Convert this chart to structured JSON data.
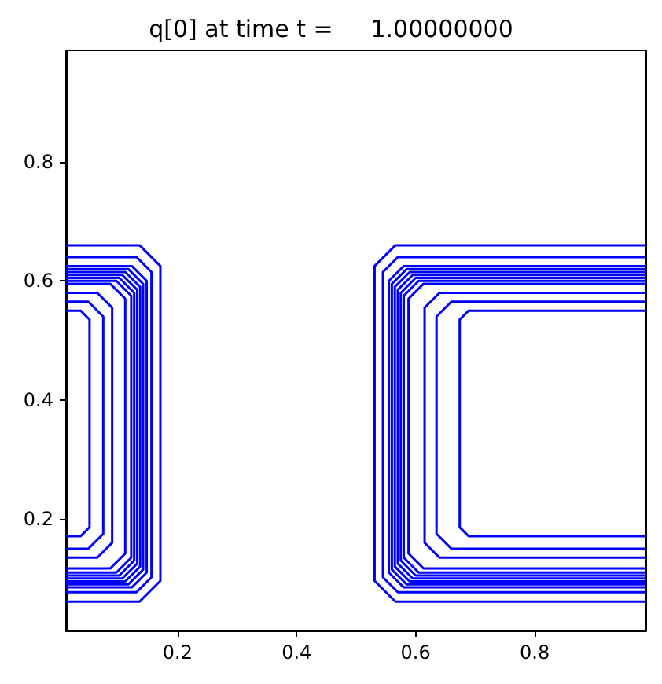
{
  "chart_data": {
    "type": "line",
    "title": "q[0] at time t =     1.00000000",
    "xlim": [
      0.0125,
      0.9875
    ],
    "ylim": [
      0.0125,
      0.9875
    ],
    "xticks": [
      0.2,
      0.4,
      0.6,
      0.8
    ],
    "yticks": [
      0.2,
      0.4,
      0.6,
      0.8
    ],
    "grid": false,
    "series": [
      {
        "color": "#0000ff",
        "x": [
          0.9875,
          0.566,
          0.531,
          0.531,
          0.566,
          0.9875
        ],
        "values": [
          0.66,
          0.66,
          0.625,
          0.096,
          0.061,
          0.061
        ]
      },
      {
        "color": "#0000ff",
        "x": [
          0.0125,
          0.136,
          0.171,
          0.171,
          0.136,
          0.0125
        ],
        "values": [
          0.66,
          0.66,
          0.625,
          0.096,
          0.061,
          0.061
        ]
      },
      {
        "color": "#0000ff",
        "x": [
          0.9875,
          0.57,
          0.545,
          0.545,
          0.57,
          0.9875
        ],
        "values": [
          0.64,
          0.64,
          0.615,
          0.102,
          0.077,
          0.077
        ]
      },
      {
        "color": "#0000ff",
        "x": [
          0.0125,
          0.131,
          0.156,
          0.156,
          0.131,
          0.0125
        ],
        "values": [
          0.64,
          0.64,
          0.615,
          0.102,
          0.077,
          0.077
        ]
      },
      {
        "color": "#0000ff",
        "x": [
          0.9875,
          0.58,
          0.555,
          0.555,
          0.58,
          0.9875
        ],
        "values": [
          0.625,
          0.625,
          0.6,
          0.11,
          0.085,
          0.085
        ]
      },
      {
        "color": "#0000ff",
        "x": [
          0.0125,
          0.123,
          0.148,
          0.148,
          0.123,
          0.0125
        ],
        "values": [
          0.625,
          0.625,
          0.6,
          0.11,
          0.085,
          0.085
        ]
      },
      {
        "color": "#0000ff",
        "x": [
          0.9875,
          0.585,
          0.56,
          0.56,
          0.585,
          0.9875
        ],
        "values": [
          0.62,
          0.62,
          0.595,
          0.115,
          0.09,
          0.09
        ]
      },
      {
        "color": "#0000ff",
        "x": [
          0.0125,
          0.117,
          0.142,
          0.142,
          0.117,
          0.0125
        ],
        "values": [
          0.62,
          0.62,
          0.595,
          0.115,
          0.09,
          0.09
        ]
      },
      {
        "color": "#0000ff",
        "x": [
          0.9875,
          0.59,
          0.565,
          0.565,
          0.59,
          0.9875
        ],
        "values": [
          0.615,
          0.615,
          0.59,
          0.12,
          0.095,
          0.095
        ]
      },
      {
        "color": "#0000ff",
        "x": [
          0.0125,
          0.112,
          0.137,
          0.137,
          0.112,
          0.0125
        ],
        "values": [
          0.615,
          0.615,
          0.59,
          0.12,
          0.095,
          0.095
        ]
      },
      {
        "color": "#0000ff",
        "x": [
          0.9875,
          0.595,
          0.57,
          0.57,
          0.595,
          0.9875
        ],
        "values": [
          0.61,
          0.61,
          0.585,
          0.125,
          0.1,
          0.1
        ]
      },
      {
        "color": "#0000ff",
        "x": [
          0.0125,
          0.107,
          0.132,
          0.132,
          0.107,
          0.0125
        ],
        "values": [
          0.61,
          0.61,
          0.585,
          0.125,
          0.1,
          0.1
        ]
      },
      {
        "color": "#0000ff",
        "x": [
          0.9875,
          0.6,
          0.575,
          0.575,
          0.6,
          0.9875
        ],
        "values": [
          0.605,
          0.605,
          0.58,
          0.13,
          0.105,
          0.105
        ]
      },
      {
        "color": "#0000ff",
        "x": [
          0.0125,
          0.102,
          0.127,
          0.127,
          0.102,
          0.0125
        ],
        "values": [
          0.605,
          0.605,
          0.58,
          0.13,
          0.105,
          0.105
        ]
      },
      {
        "color": "#0000ff",
        "x": [
          0.9875,
          0.605,
          0.58,
          0.58,
          0.605,
          0.9875
        ],
        "values": [
          0.6,
          0.6,
          0.575,
          0.135,
          0.11,
          0.11
        ]
      },
      {
        "color": "#0000ff",
        "x": [
          0.0125,
          0.097,
          0.122,
          0.122,
          0.097,
          0.0125
        ],
        "values": [
          0.6,
          0.6,
          0.575,
          0.135,
          0.11,
          0.11
        ]
      },
      {
        "color": "#0000ff",
        "x": [
          0.9875,
          0.613,
          0.588,
          0.588,
          0.613,
          0.9875
        ],
        "values": [
          0.595,
          0.595,
          0.57,
          0.142,
          0.117,
          0.117
        ]
      },
      {
        "color": "#0000ff",
        "x": [
          0.0125,
          0.087,
          0.112,
          0.112,
          0.087,
          0.0125
        ],
        "values": [
          0.595,
          0.595,
          0.57,
          0.142,
          0.117,
          0.117
        ]
      },
      {
        "color": "#0000ff",
        "x": [
          0.9875,
          0.64,
          0.615,
          0.615,
          0.64,
          0.9875
        ],
        "values": [
          0.58,
          0.58,
          0.555,
          0.16,
          0.135,
          0.135
        ]
      },
      {
        "color": "#0000ff",
        "x": [
          0.0125,
          0.065,
          0.09,
          0.09,
          0.065,
          0.0125
        ],
        "values": [
          0.58,
          0.58,
          0.555,
          0.16,
          0.135,
          0.135
        ]
      },
      {
        "color": "#0000ff",
        "x": [
          0.9875,
          0.66,
          0.635,
          0.635,
          0.66,
          0.9875
        ],
        "values": [
          0.565,
          0.565,
          0.54,
          0.175,
          0.15,
          0.15
        ]
      },
      {
        "color": "#0000ff",
        "x": [
          0.0125,
          0.05,
          0.075,
          0.075,
          0.05,
          0.0125
        ],
        "values": [
          0.565,
          0.565,
          0.54,
          0.175,
          0.15,
          0.15
        ]
      },
      {
        "color": "#0000ff",
        "x": [
          0.9875,
          0.689,
          0.674,
          0.674,
          0.689,
          0.9875
        ],
        "values": [
          0.55,
          0.55,
          0.535,
          0.186,
          0.171,
          0.171
        ]
      },
      {
        "color": "#0000ff",
        "x": [
          0.0125,
          0.037,
          0.052,
          0.052,
          0.037,
          0.0125
        ],
        "values": [
          0.55,
          0.55,
          0.535,
          0.186,
          0.171,
          0.171
        ]
      }
    ]
  }
}
